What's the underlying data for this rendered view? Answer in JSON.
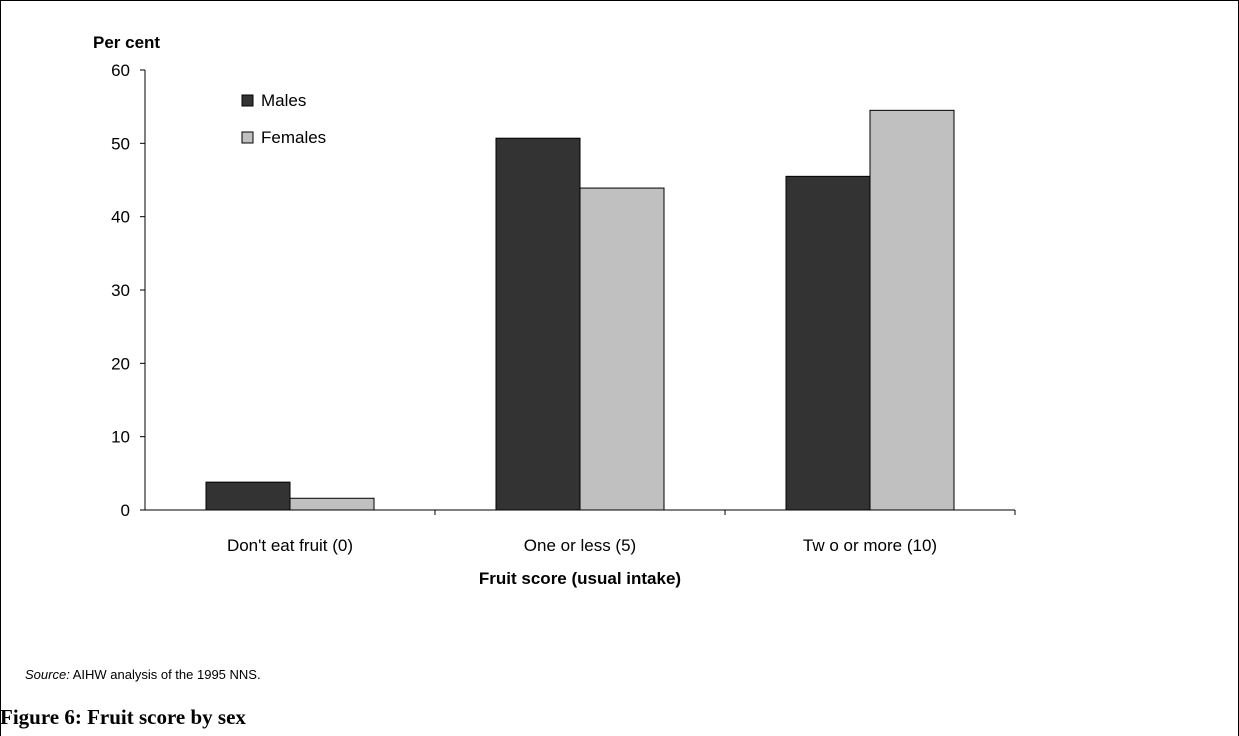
{
  "chart_data": {
    "type": "bar",
    "ylabel": "Per cent",
    "xlabel": "Fruit score (usual intake)",
    "ylim": [
      0,
      60
    ],
    "yticks": [
      0,
      10,
      20,
      30,
      40,
      50,
      60
    ],
    "categories": [
      "Don't eat fruit (0)",
      "One or less (5)",
      "Tw o or more (10)"
    ],
    "series": [
      {
        "name": "Males",
        "values": [
          3.8,
          50.7,
          45.5
        ],
        "color": "#333333"
      },
      {
        "name": "Females",
        "values": [
          1.6,
          43.9,
          54.5
        ],
        "color": "#c0c0c0"
      }
    ],
    "legend_position": "top-left",
    "grid": false
  },
  "source": {
    "label": "Source:",
    "text": "AIHW analysis of the 1995 NNS."
  },
  "figure_caption": "Figure 6: Fruit score by sex"
}
